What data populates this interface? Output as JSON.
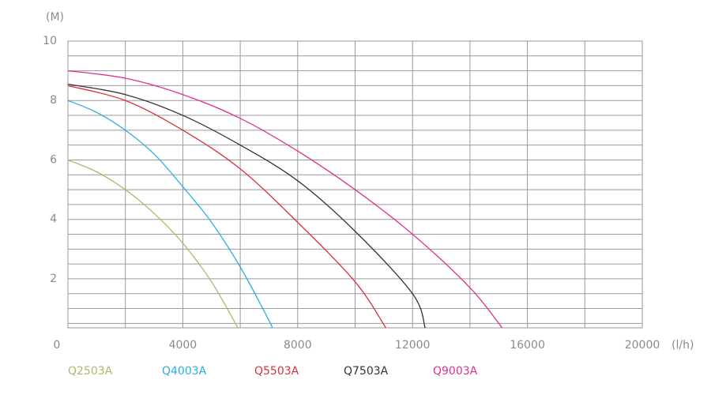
{
  "chart_data": {
    "type": "line",
    "y_label": "(M)",
    "x_label": "(l/h)",
    "xlim": [
      0,
      20000
    ],
    "ylim": [
      0.35,
      10
    ],
    "xticks": [
      0,
      4000,
      8000,
      12000,
      16000,
      20000
    ],
    "yticks": [
      2,
      4,
      6,
      8,
      10
    ],
    "grid_x": [
      0,
      2000,
      4000,
      6000,
      8000,
      10000,
      12000,
      14000,
      16000,
      18000,
      20000
    ],
    "grid_y": [
      0.5,
      1,
      1.5,
      2,
      2.5,
      3,
      3.5,
      4,
      4.5,
      5,
      5.5,
      6,
      6.5,
      7,
      7.5,
      8,
      8.5,
      9,
      9.5,
      10
    ],
    "series": [
      {
        "name": "Q2503A",
        "color": "#a9b96f",
        "x": [
          0,
          1000,
          2000,
          3000,
          4000,
          5000,
          5920
        ],
        "values": [
          6,
          5.6,
          5.0,
          4.2,
          3.2,
          1.9,
          0.35
        ]
      },
      {
        "name": "Q4003A",
        "color": "#2aaee2",
        "x": [
          0,
          1000,
          2000,
          3000,
          4000,
          5000,
          6000,
          7000,
          7100
        ],
        "values": [
          8,
          7.6,
          7.0,
          6.2,
          5.1,
          3.9,
          2.4,
          0.6,
          0.35
        ]
      },
      {
        "name": "Q5503A",
        "color": "#d8303c",
        "x": [
          0,
          2000,
          4000,
          6000,
          8000,
          10000,
          11070
        ],
        "values": [
          8.5,
          8.0,
          7.0,
          5.7,
          3.9,
          1.9,
          0.35
        ]
      },
      {
        "name": "Q7503A",
        "color": "#333333",
        "x": [
          0,
          2000,
          4000,
          6000,
          8000,
          10000,
          12000,
          12440
        ],
        "values": [
          8.55,
          8.2,
          7.5,
          6.5,
          5.3,
          3.6,
          1.5,
          0.35
        ]
      },
      {
        "name": "Q9003A",
        "color": "#e0308f",
        "x": [
          0,
          2000,
          4000,
          6000,
          8000,
          10000,
          12000,
          14000,
          15120
        ],
        "values": [
          9,
          8.75,
          8.2,
          7.4,
          6.3,
          5.0,
          3.5,
          1.7,
          0.35
        ]
      }
    ]
  }
}
